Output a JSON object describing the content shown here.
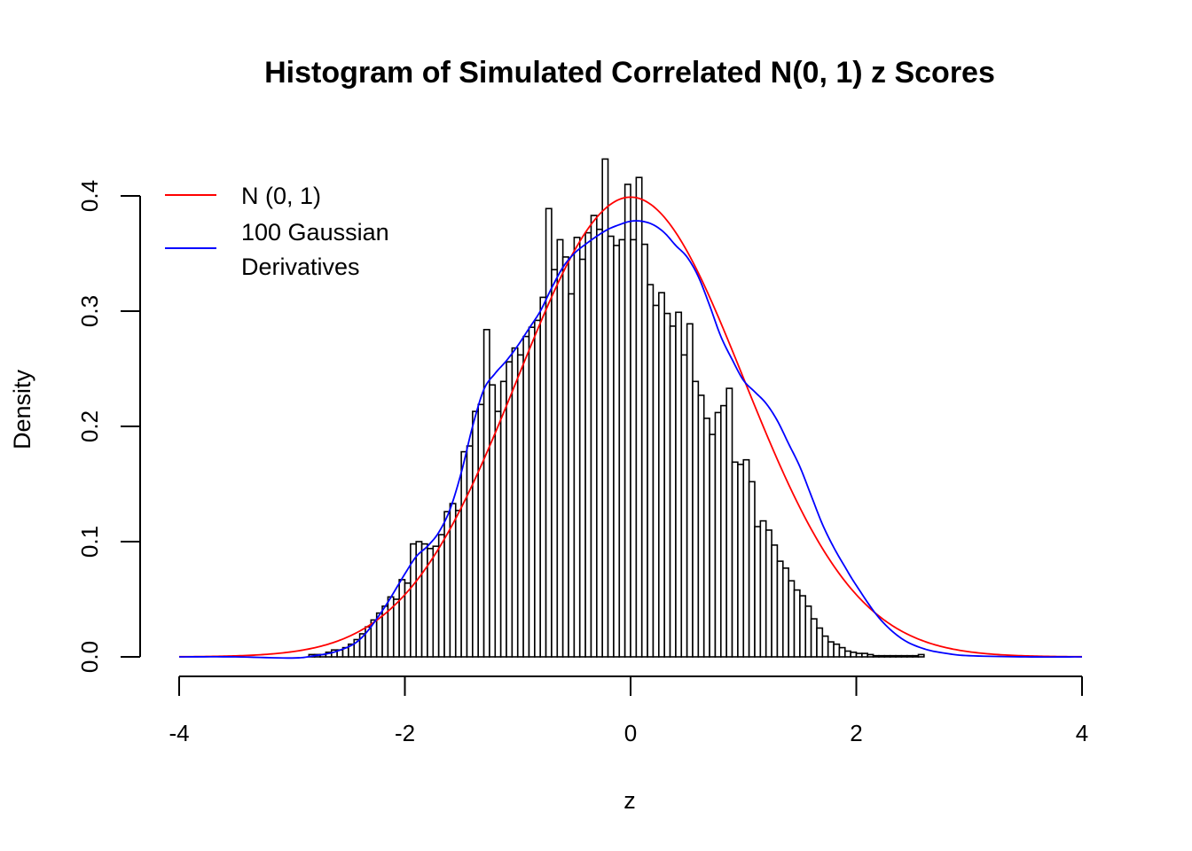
{
  "chart_data": {
    "type": "bar",
    "title": "Histogram of Simulated Correlated N(0, 1) z Scores",
    "xlabel": "z",
    "ylabel": "Density",
    "xlim": [
      -4,
      4
    ],
    "ylim": [
      0,
      0.4
    ],
    "xticks": [
      "-4",
      "-2",
      "0",
      "2",
      "4"
    ],
    "yticks": [
      "0.0",
      "0.1",
      "0.2",
      "0.3",
      "0.4"
    ],
    "legend": {
      "position": "top-left",
      "entries": [
        {
          "label": "N (0, 1)",
          "color": "#ff0000"
        },
        {
          "label": "100 Gaussian",
          "label2": "Derivatives",
          "color": "#0000ff"
        }
      ]
    },
    "histogram": {
      "bin_width": 0.05,
      "start": -2.85,
      "densities": [
        0.002,
        0.002,
        0.002,
        0.004,
        0.006,
        0.006,
        0.008,
        0.011,
        0.015,
        0.02,
        0.026,
        0.032,
        0.038,
        0.044,
        0.052,
        0.05,
        0.067,
        0.064,
        0.098,
        0.1,
        0.098,
        0.094,
        0.096,
        0.106,
        0.126,
        0.133,
        0.127,
        0.178,
        0.183,
        0.213,
        0.219,
        0.284,
        0.236,
        0.213,
        0.239,
        0.256,
        0.268,
        0.262,
        0.278,
        0.286,
        0.292,
        0.312,
        0.389,
        0.336,
        0.362,
        0.347,
        0.315,
        0.364,
        0.345,
        0.368,
        0.383,
        0.371,
        0.432,
        0.365,
        0.357,
        0.362,
        0.41,
        0.362,
        0.416,
        0.358,
        0.323,
        0.305,
        0.316,
        0.298,
        0.287,
        0.299,
        0.262,
        0.289,
        0.239,
        0.227,
        0.207,
        0.193,
        0.212,
        0.218,
        0.233,
        0.169,
        0.167,
        0.171,
        0.152,
        0.113,
        0.118,
        0.11,
        0.097,
        0.083,
        0.077,
        0.066,
        0.058,
        0.053,
        0.044,
        0.033,
        0.025,
        0.018,
        0.013,
        0.011,
        0.008,
        0.005,
        0.004,
        0.003,
        0.003,
        0.002,
        0.001,
        0.001,
        0.001,
        0.001,
        0.001,
        0.001,
        0.001,
        0.001,
        0.002
      ]
    },
    "series": [
      {
        "name": "N (0, 1)",
        "color": "#ff0000",
        "kind": "normal_density"
      },
      {
        "name": "100 Gaussian Derivatives",
        "color": "#0000ff",
        "x": [
          -4.0,
          -3.5,
          -3.0,
          -2.8,
          -2.6,
          -2.4,
          -2.2,
          -2.0,
          -1.9,
          -1.8,
          -1.7,
          -1.6,
          -1.5,
          -1.4,
          -1.3,
          -1.2,
          -1.1,
          -1.0,
          -0.9,
          -0.8,
          -0.7,
          -0.6,
          -0.5,
          -0.4,
          -0.3,
          -0.2,
          -0.1,
          0.0,
          0.1,
          0.2,
          0.3,
          0.4,
          0.5,
          0.6,
          0.7,
          0.8,
          0.9,
          1.0,
          1.1,
          1.2,
          1.3,
          1.4,
          1.5,
          1.6,
          1.7,
          1.8,
          1.9,
          2.0,
          2.2,
          2.4,
          2.6,
          2.8,
          3.0,
          3.5,
          4.0
        ],
        "y": [
          0.0,
          0.0,
          -0.001,
          0.001,
          0.005,
          0.015,
          0.04,
          0.072,
          0.087,
          0.096,
          0.108,
          0.128,
          0.16,
          0.2,
          0.232,
          0.246,
          0.257,
          0.27,
          0.285,
          0.3,
          0.32,
          0.338,
          0.35,
          0.358,
          0.365,
          0.371,
          0.375,
          0.378,
          0.378,
          0.375,
          0.368,
          0.357,
          0.347,
          0.33,
          0.305,
          0.278,
          0.258,
          0.24,
          0.23,
          0.22,
          0.205,
          0.185,
          0.165,
          0.14,
          0.115,
          0.095,
          0.078,
          0.062,
          0.034,
          0.016,
          0.007,
          0.003,
          0.001,
          0.0,
          0.0
        ]
      }
    ]
  }
}
